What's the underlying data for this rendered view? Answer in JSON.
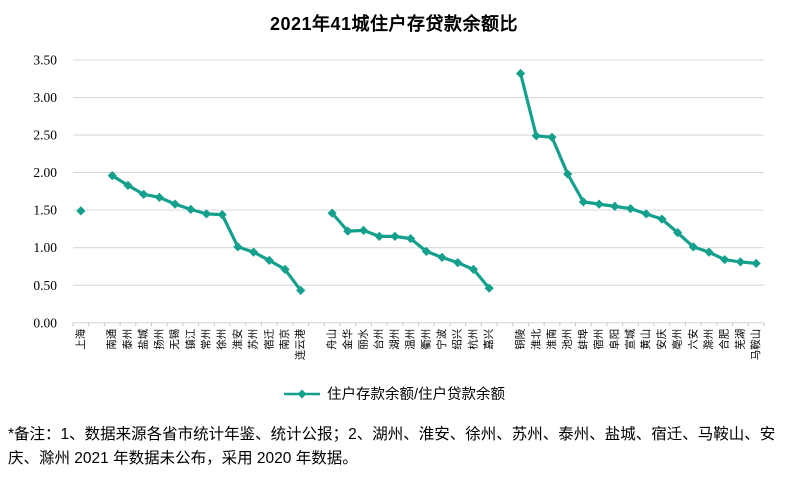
{
  "title": "2021年41城住户存贷款余额比",
  "legend": {
    "label": "住户存款余额/住户贷款余额"
  },
  "footnote": "*备注：1、数据来源各省市统计年鉴、统计公报；2、湖州、淮安、徐州、苏州、泰州、盐城、宿迁、马鞍山、安庆、滁州 2021 年数据未公布，采用 2020 年数据。",
  "colors": {
    "line": "#14A08C",
    "grid": "#D9D9D9",
    "tick": "#C6C6C6",
    "text": "#000000"
  },
  "chart_data": {
    "type": "line",
    "title": "2021年41城住户存贷款余额比",
    "xlabel": "",
    "ylabel": "",
    "ylim": [
      0,
      3.5
    ],
    "ytick_step": 0.5,
    "yticks": [
      "3.50",
      "3.00",
      "2.50",
      "2.00",
      "1.50",
      "1.00",
      "0.50",
      "0.00"
    ],
    "grid": true,
    "marker": "diamond",
    "legend_position": "bottom",
    "series_name": "住户存款余额/住户贷款余额",
    "note": "one series drawn as 4 segments separated by blank category gaps",
    "segments": [
      {
        "cities": [
          "上海"
        ],
        "values": [
          1.49
        ]
      },
      {
        "cities": [
          "南通",
          "泰州",
          "盐城",
          "扬州",
          "无锡",
          "镇江",
          "常州",
          "徐州",
          "淮安",
          "苏州",
          "宿迁",
          "南京",
          "连云港"
        ],
        "values": [
          1.96,
          1.83,
          1.71,
          1.67,
          1.58,
          1.51,
          1.45,
          1.44,
          1.01,
          0.94,
          0.83,
          0.71,
          0.43
        ]
      },
      {
        "cities": [
          "舟山",
          "金华",
          "丽水",
          "台州",
          "湖州",
          "温州",
          "衢州",
          "宁波",
          "绍兴",
          "杭州",
          "嘉兴"
        ],
        "values": [
          1.46,
          1.22,
          1.23,
          1.15,
          1.15,
          1.12,
          0.95,
          0.87,
          0.8,
          0.71,
          0.46
        ]
      },
      {
        "cities": [
          "铜陵",
          "淮北",
          "淮南",
          "池州",
          "蚌埠",
          "宿州",
          "阜阳",
          "宣城",
          "黄山",
          "安庆",
          "亳州",
          "六安",
          "滁州",
          "合肥",
          "芜湖",
          "马鞍山"
        ],
        "values": [
          3.32,
          2.49,
          2.47,
          1.98,
          1.61,
          1.58,
          1.55,
          1.52,
          1.45,
          1.38,
          1.2,
          1.01,
          0.94,
          0.84,
          0.81,
          0.79
        ]
      }
    ]
  }
}
